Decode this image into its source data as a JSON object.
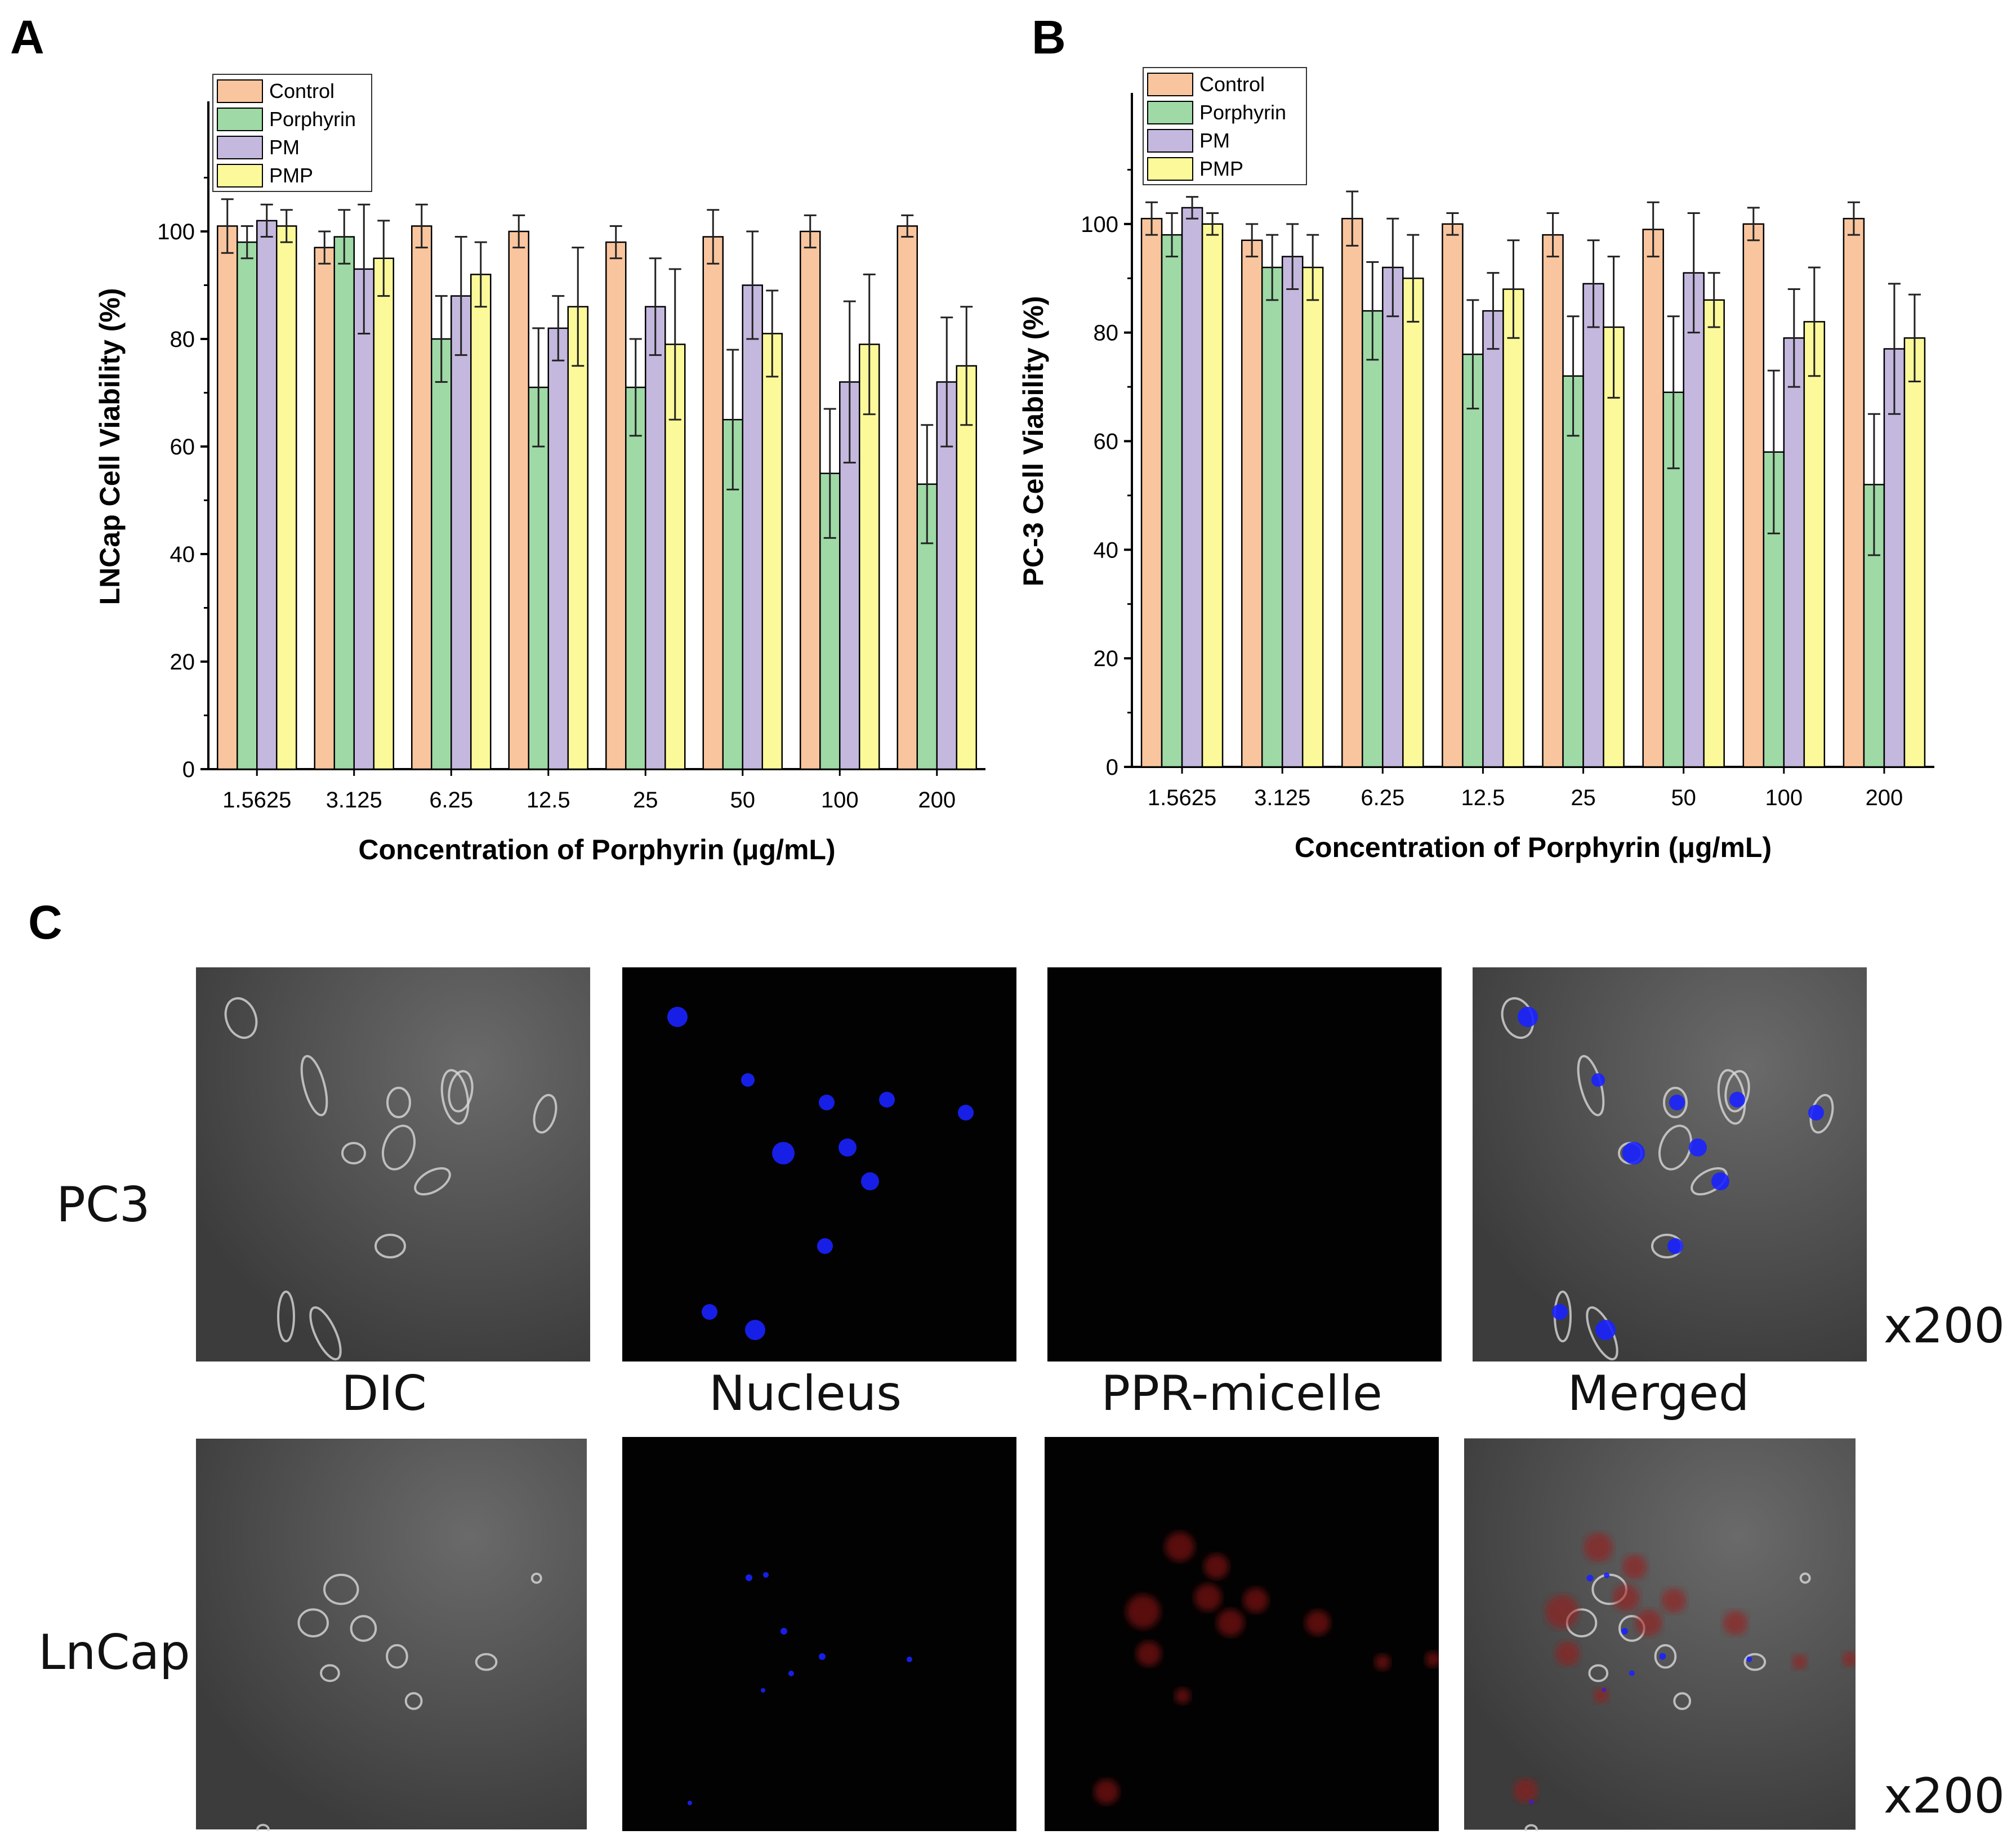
{
  "panels": {
    "a": "A",
    "b": "B",
    "c": "C"
  },
  "colors": {
    "Control": "#F9C59E",
    "Porphyrin": "#9ED9A6",
    "PM": "#C4B8DE",
    "PMP": "#FCF99A",
    "bar_stroke": "#000000"
  },
  "chart_data": [
    {
      "type": "bar",
      "panel": "A",
      "categories": [
        "1.5625",
        "3.125",
        "6.25",
        "12.5",
        "25",
        "50",
        "100",
        "200"
      ],
      "series": [
        {
          "name": "Control",
          "values": [
            101,
            97,
            101,
            100,
            98,
            99,
            100,
            101
          ],
          "errors": [
            5,
            3,
            4,
            3,
            3,
            5,
            3,
            2
          ]
        },
        {
          "name": "Porphyrin",
          "values": [
            98,
            99,
            80,
            71,
            71,
            65,
            55,
            53
          ],
          "errors": [
            3,
            5,
            8,
            11,
            9,
            13,
            12,
            11
          ]
        },
        {
          "name": "PM",
          "values": [
            102,
            93,
            88,
            82,
            86,
            90,
            72,
            72
          ],
          "errors": [
            3,
            12,
            11,
            6,
            9,
            10,
            15,
            12
          ]
        },
        {
          "name": "PMP",
          "values": [
            101,
            95,
            92,
            86,
            79,
            81,
            79,
            75
          ],
          "errors": [
            3,
            7,
            6,
            11,
            14,
            8,
            13,
            11
          ]
        }
      ],
      "xlabel": "Concentration of Porphyrin (μg/mL)",
      "ylabel": "LNCap Cell Viability (%)",
      "ylim": [
        0,
        120
      ],
      "yticks": [
        0,
        20,
        40,
        60,
        80,
        100
      ],
      "legend": "top-left",
      "grid": false
    },
    {
      "type": "bar",
      "panel": "B",
      "categories": [
        "1.5625",
        "3.125",
        "6.25",
        "12.5",
        "25",
        "50",
        "100",
        "200"
      ],
      "series": [
        {
          "name": "Control",
          "values": [
            101,
            97,
            101,
            100,
            98,
            99,
            100,
            101
          ],
          "errors": [
            3,
            3,
            5,
            2,
            4,
            5,
            3,
            3
          ]
        },
        {
          "name": "Porphyrin",
          "values": [
            98,
            92,
            84,
            76,
            72,
            69,
            58,
            52
          ],
          "errors": [
            4,
            6,
            9,
            10,
            11,
            14,
            15,
            13
          ]
        },
        {
          "name": "PM",
          "values": [
            103,
            94,
            92,
            84,
            89,
            91,
            79,
            77
          ],
          "errors": [
            2,
            6,
            9,
            7,
            8,
            11,
            9,
            12
          ]
        },
        {
          "name": "PMP",
          "values": [
            100,
            92,
            90,
            88,
            81,
            86,
            82,
            79
          ],
          "errors": [
            2,
            6,
            8,
            9,
            13,
            5,
            10,
            8
          ]
        }
      ],
      "xlabel": "Concentration of Porphyrin (μg/mL)",
      "ylabel": "PC-3 Cell Viability (%)",
      "ylim": [
        0,
        120
      ],
      "yticks": [
        0,
        20,
        40,
        60,
        80,
        100
      ],
      "legend": "top-left",
      "grid": false
    }
  ],
  "microscopy": {
    "row_labels": [
      "PC3",
      "LnCap"
    ],
    "column_labels": [
      "DIC",
      "Nucleus",
      "PPR-micelle",
      "Merged"
    ],
    "magnification": [
      "x200",
      "x200"
    ]
  }
}
